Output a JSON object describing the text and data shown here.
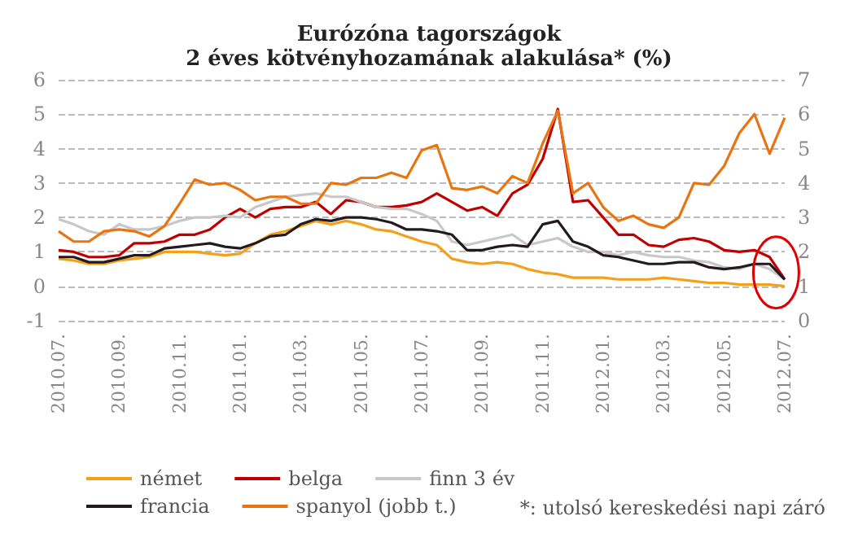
{
  "chart_data": {
    "type": "line",
    "title": "Eurózóna tagországok",
    "subtitle": "2 éves kötvényhozamának alakulása* (%)",
    "categories": [
      "2010.07.",
      null,
      null,
      null,
      "2010.09.",
      null,
      null,
      null,
      "2010.11.",
      null,
      null,
      null,
      "2011.01.",
      null,
      null,
      null,
      "2011.03.",
      null,
      null,
      null,
      "2011.05.",
      null,
      null,
      null,
      "2011.07.",
      null,
      null,
      null,
      "2011.09.",
      null,
      null,
      null,
      "2011.11.",
      null,
      null,
      null,
      "2012.01.",
      null,
      null,
      null,
      "2012.03.",
      null,
      null,
      null,
      "2012.05.",
      null,
      null,
      null,
      "2012.07."
    ],
    "series": [
      {
        "name": "német",
        "color": "#f5a01a",
        "values": [
          0.8,
          0.75,
          0.65,
          0.65,
          0.75,
          0.8,
          0.85,
          1.0,
          1.0,
          1.0,
          0.95,
          0.9,
          0.95,
          1.25,
          1.5,
          1.6,
          1.75,
          1.9,
          1.8,
          1.9,
          1.8,
          1.65,
          1.6,
          1.45,
          1.3,
          1.2,
          0.8,
          0.7,
          0.65,
          0.7,
          0.65,
          0.5,
          0.4,
          0.35,
          0.25,
          0.25,
          0.25,
          0.2,
          0.2,
          0.2,
          0.25,
          0.2,
          0.15,
          0.1,
          0.1,
          0.05,
          0.05,
          0.05,
          0.0
        ]
      },
      {
        "name": "belga",
        "color": "#c00000",
        "values": [
          1.05,
          1.0,
          0.85,
          0.85,
          0.9,
          1.25,
          1.25,
          1.3,
          1.5,
          1.5,
          1.65,
          2.0,
          2.25,
          2.0,
          2.25,
          2.3,
          2.3,
          2.45,
          2.1,
          2.5,
          2.45,
          2.3,
          2.3,
          2.35,
          2.45,
          2.7,
          2.45,
          2.2,
          2.3,
          2.05,
          2.7,
          2.95,
          3.7,
          5.15,
          2.45,
          2.5,
          2.0,
          1.5,
          1.5,
          1.2,
          1.15,
          1.35,
          1.4,
          1.3,
          1.05,
          1.0,
          1.05,
          0.85,
          0.2
        ]
      },
      {
        "name": "finn 3 év",
        "color": "#c8c8c8",
        "values": [
          1.95,
          1.8,
          1.6,
          1.5,
          1.8,
          1.65,
          1.65,
          1.75,
          1.9,
          2.0,
          2.0,
          2.05,
          2.0,
          2.3,
          2.45,
          2.6,
          2.65,
          2.7,
          2.6,
          2.6,
          2.45,
          2.3,
          2.25,
          2.25,
          2.1,
          1.9,
          1.3,
          1.2,
          1.3,
          1.4,
          1.5,
          1.2,
          1.3,
          1.4,
          1.15,
          1.0,
          1.0,
          0.9,
          1.0,
          0.9,
          0.85,
          0.85,
          0.75,
          0.7,
          0.55,
          0.5,
          0.65,
          0.5,
          0.2
        ]
      },
      {
        "name": "francia",
        "color": "#231a20",
        "values": [
          0.85,
          0.85,
          0.7,
          0.7,
          0.8,
          0.9,
          0.9,
          1.1,
          1.15,
          1.2,
          1.25,
          1.15,
          1.1,
          1.25,
          1.45,
          1.5,
          1.8,
          1.95,
          1.9,
          2.0,
          2.0,
          1.95,
          1.85,
          1.65,
          1.65,
          1.6,
          1.5,
          1.05,
          1.05,
          1.15,
          1.2,
          1.15,
          1.8,
          1.9,
          1.3,
          1.15,
          0.9,
          0.85,
          0.75,
          0.65,
          0.65,
          0.7,
          0.7,
          0.55,
          0.5,
          0.55,
          0.65,
          0.65,
          0.2
        ]
      },
      {
        "name": "spanyol (jobb t.)",
        "color": "#e87511",
        "axis": "y2",
        "values": [
          2.6,
          2.3,
          2.3,
          2.6,
          2.65,
          2.6,
          2.45,
          2.75,
          3.4,
          4.1,
          3.95,
          4.0,
          3.8,
          3.5,
          3.6,
          3.6,
          3.4,
          3.4,
          4.0,
          3.95,
          4.15,
          4.15,
          4.3,
          4.15,
          4.95,
          5.1,
          3.85,
          3.8,
          3.9,
          3.7,
          4.2,
          4.0,
          5.15,
          6.1,
          3.7,
          4.0,
          3.3,
          2.9,
          3.05,
          2.8,
          2.7,
          3.0,
          4.0,
          3.95,
          4.5,
          5.45,
          6.0,
          4.85,
          5.9
        ]
      }
    ],
    "ylim": [
      -1,
      6
    ],
    "yticks": [
      -1,
      0,
      1,
      2,
      3,
      4,
      5,
      6
    ],
    "y2lim": [
      0,
      7
    ],
    "y2ticks": [
      0,
      1,
      2,
      3,
      4,
      5,
      6,
      7
    ],
    "grid": "y",
    "legend": "bottom",
    "marker": "none",
    "line_style": "solid",
    "annotations": [
      "*: utolsó kereskedési napi záró"
    ]
  }
}
